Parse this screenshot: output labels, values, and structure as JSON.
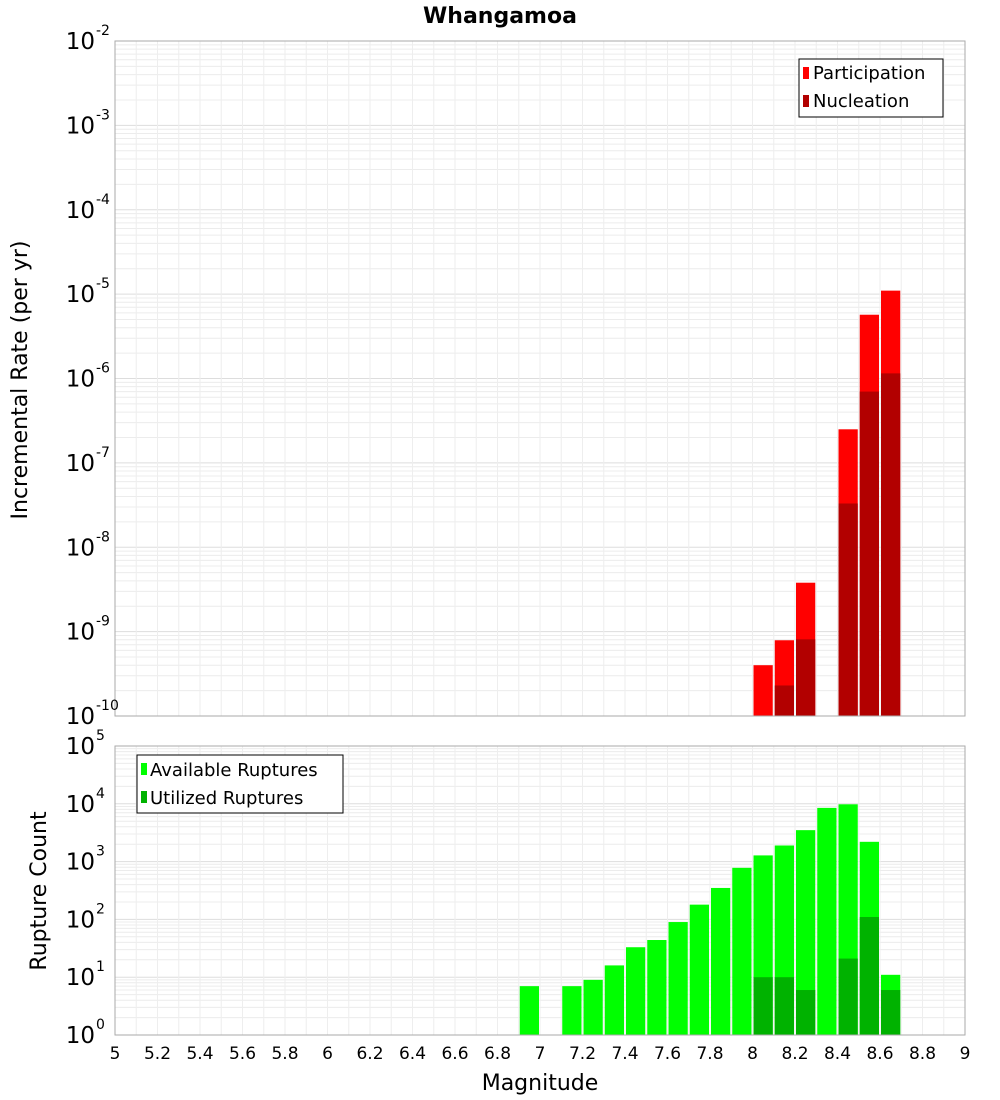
{
  "chart_data": [
    {
      "type": "bar",
      "title": "Whangamoa",
      "xlabel": "",
      "ylabel": "Incremental Rate (per yr)",
      "yscale": "log",
      "ylim": [
        1e-10,
        0.01
      ],
      "xlim": [
        5,
        9
      ],
      "y_ticks": [
        {
          "base": "10",
          "exp": "-10"
        },
        {
          "base": "10",
          "exp": "-9"
        },
        {
          "base": "10",
          "exp": "-8"
        },
        {
          "base": "10",
          "exp": "-7"
        },
        {
          "base": "10",
          "exp": "-6"
        },
        {
          "base": "10",
          "exp": "-5"
        },
        {
          "base": "10",
          "exp": "-4"
        },
        {
          "base": "10",
          "exp": "-3"
        },
        {
          "base": "10",
          "exp": "-2"
        }
      ],
      "legend_position": "top-right",
      "grid": true,
      "series": [
        {
          "name": "Participation",
          "color": "#ff0000",
          "x": [
            8.05,
            8.15,
            8.25,
            8.45,
            8.55,
            8.65
          ],
          "values": [
            4e-10,
            7.9e-10,
            3.8e-09,
            2.5e-07,
            5.7e-06,
            1.1e-05
          ]
        },
        {
          "name": "Nucleation",
          "color": "#b20000",
          "x": [
            8.15,
            8.25,
            8.45,
            8.55,
            8.65
          ],
          "values": [
            2.3e-10,
            8.1e-10,
            3.3e-08,
            7e-07,
            1.15e-06
          ]
        }
      ]
    },
    {
      "type": "bar",
      "xlabel": "Magnitude",
      "ylabel": "Rupture Count",
      "yscale": "log",
      "ylim": [
        1,
        100000.0
      ],
      "xlim": [
        5,
        9
      ],
      "y_ticks": [
        {
          "base": "10",
          "exp": "0"
        },
        {
          "base": "10",
          "exp": "1"
        },
        {
          "base": "10",
          "exp": "2"
        },
        {
          "base": "10",
          "exp": "3"
        },
        {
          "base": "10",
          "exp": "4"
        },
        {
          "base": "10",
          "exp": "5"
        }
      ],
      "x_ticks": [
        "5",
        "5.2",
        "5.4",
        "5.6",
        "5.8",
        "6",
        "6.2",
        "6.4",
        "6.6",
        "6.8",
        "7",
        "7.2",
        "7.4",
        "7.6",
        "7.8",
        "8",
        "8.2",
        "8.4",
        "8.6",
        "8.8",
        "9"
      ],
      "legend_position": "top-left",
      "grid": true,
      "series": [
        {
          "name": "Available Ruptures",
          "color": "#00ff00",
          "x": [
            6.95,
            7.15,
            7.25,
            7.35,
            7.45,
            7.55,
            7.65,
            7.75,
            7.85,
            7.95,
            8.05,
            8.15,
            8.25,
            8.35,
            8.45,
            8.55,
            8.65
          ],
          "values": [
            7,
            7,
            9,
            16,
            33,
            44,
            90,
            180,
            350,
            780,
            1280,
            1900,
            3500,
            8500,
            9800,
            2200,
            11
          ]
        },
        {
          "name": "Utilized Ruptures",
          "color": "#00b200",
          "x": [
            8.05,
            8.15,
            8.25,
            8.45,
            8.55,
            8.65
          ],
          "values": [
            10,
            10,
            6,
            21,
            110,
            6
          ]
        }
      ]
    }
  ]
}
